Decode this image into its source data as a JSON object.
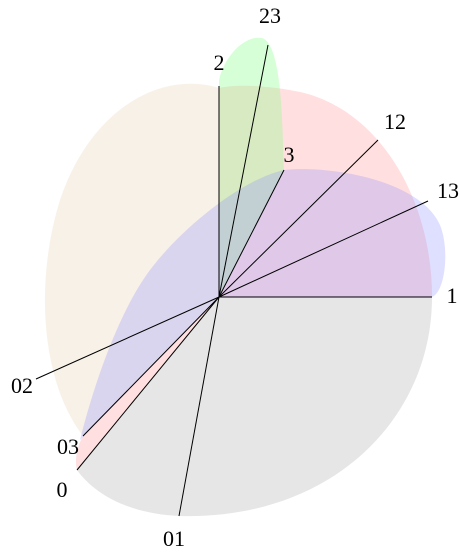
{
  "rays": [
    {
      "label": "1"
    },
    {
      "label": "13"
    },
    {
      "label": "12"
    },
    {
      "label": "3"
    },
    {
      "label": "23"
    },
    {
      "label": "2"
    },
    {
      "label": "02"
    },
    {
      "label": "03"
    },
    {
      "label": "0"
    },
    {
      "label": "01"
    }
  ]
}
